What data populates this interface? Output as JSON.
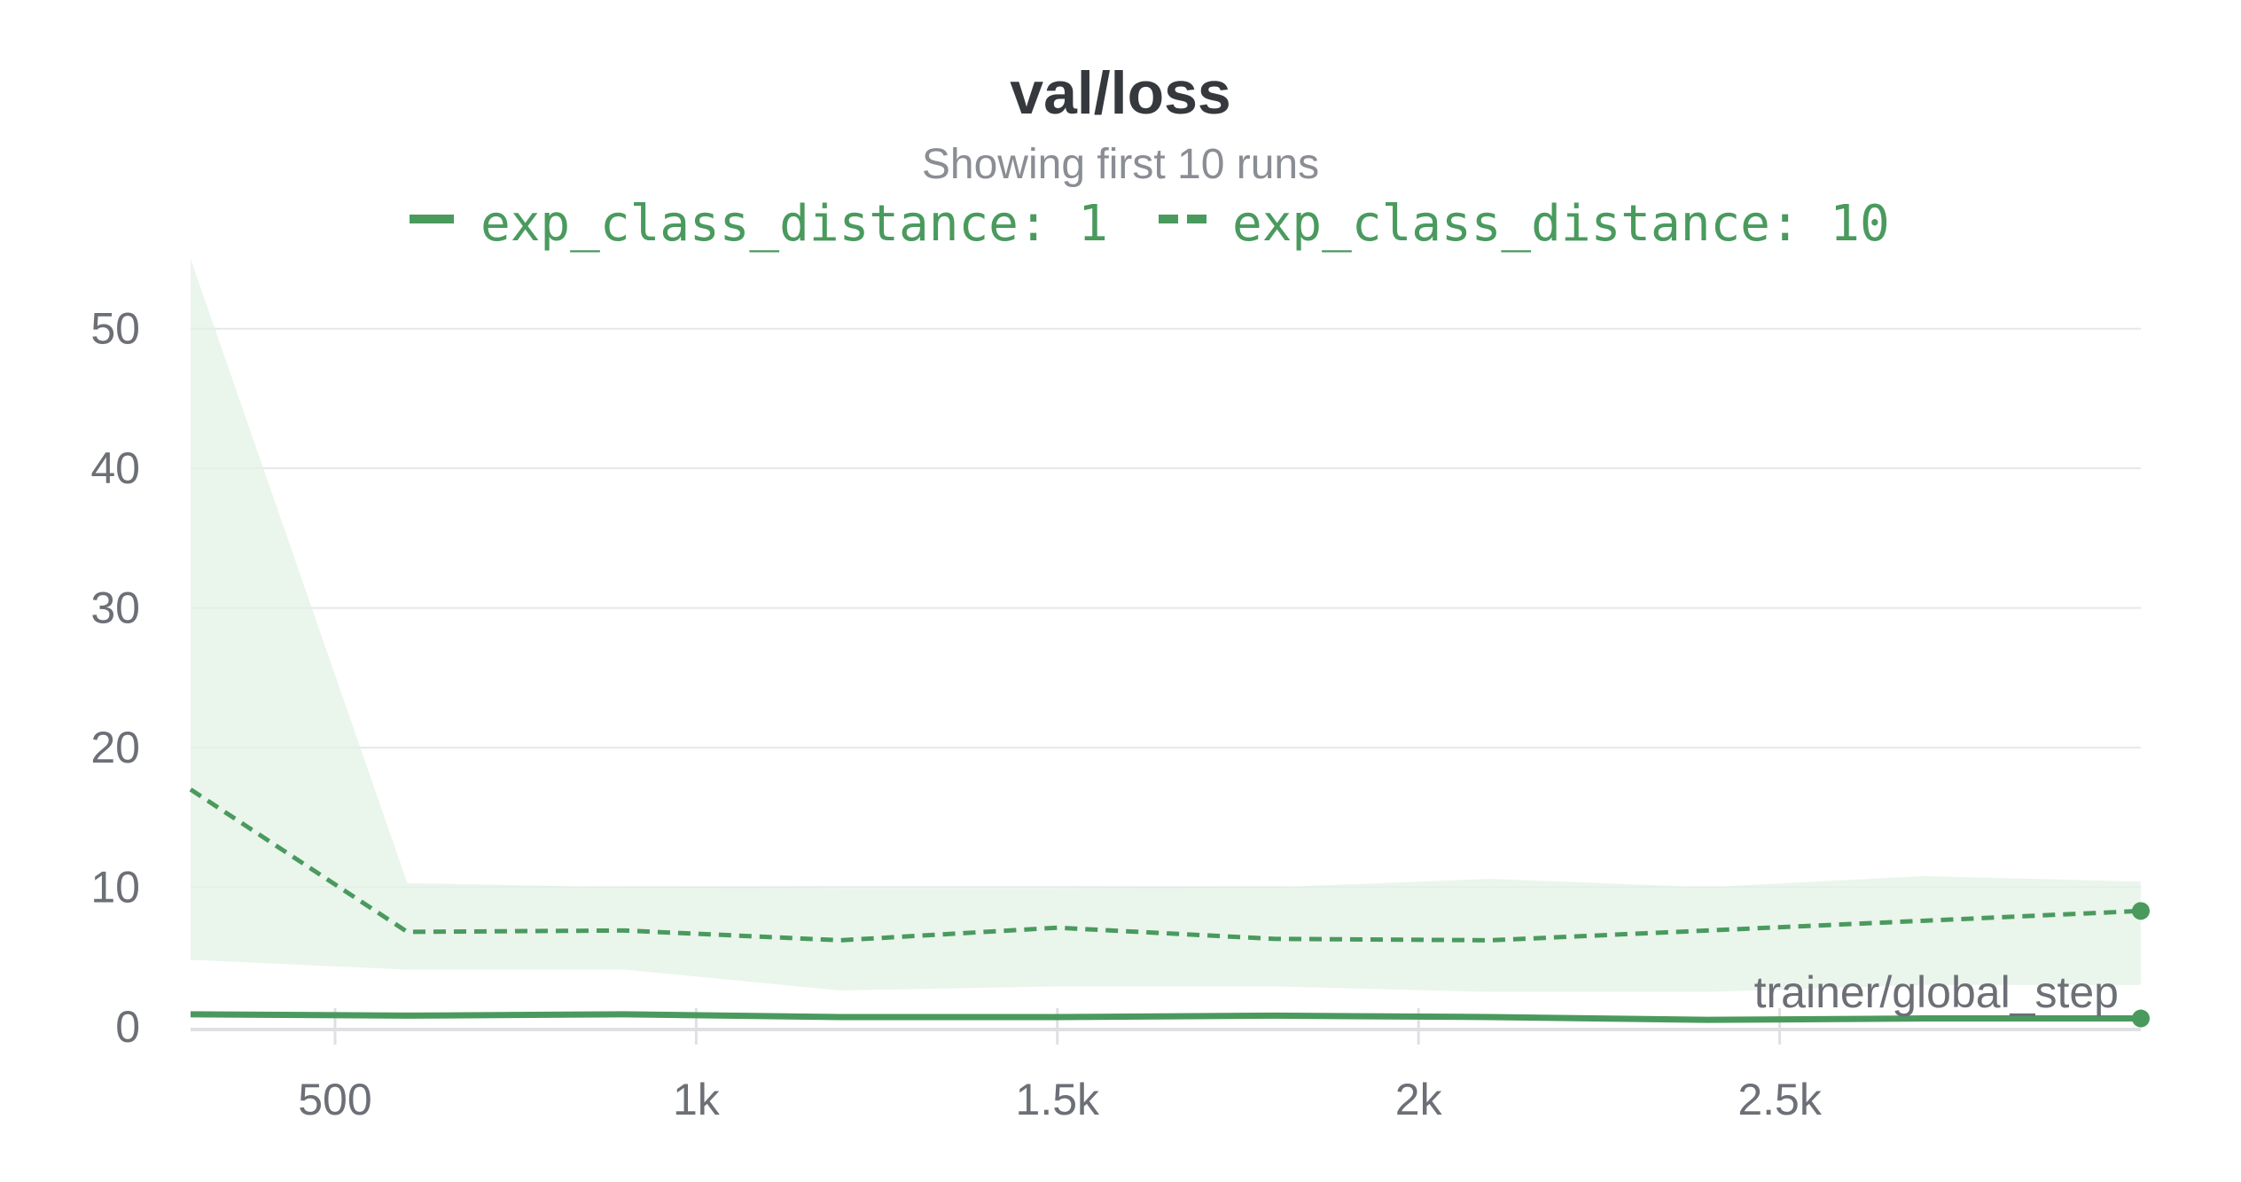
{
  "chart_data": {
    "type": "line",
    "title": "val/loss",
    "subtitle": "Showing first 10 runs",
    "xlabel": "trainer/global_step",
    "ylabel": "",
    "xlim": [
      300,
      3000
    ],
    "ylim": [
      0,
      55
    ],
    "xticks": [
      500,
      1000,
      1500,
      2000,
      2500
    ],
    "xtick_labels": [
      "500",
      "1k",
      "1.5k",
      "2k",
      "2.5k"
    ],
    "yticks": [
      0,
      10,
      20,
      30,
      40,
      50
    ],
    "ytick_labels": [
      "0",
      "10",
      "20",
      "30",
      "40",
      "50"
    ],
    "grid": true,
    "legend_position": "top",
    "color": "#4a9a5e",
    "band_color": "#e3f1e6",
    "series": [
      {
        "name": "exp_class_distance: 1",
        "style": "solid",
        "x": [
          300,
          600,
          900,
          1200,
          1500,
          1800,
          2100,
          2400,
          2700,
          3000
        ],
        "y": [
          0.9,
          0.8,
          0.9,
          0.7,
          0.7,
          0.8,
          0.7,
          0.5,
          0.6,
          0.6
        ],
        "band_lower": [
          0.7,
          0.6,
          0.7,
          0.5,
          0.5,
          0.6,
          0.5,
          0.4,
          0.4,
          0.4
        ],
        "band_upper": [
          1.1,
          1.0,
          1.1,
          0.9,
          0.9,
          1.0,
          0.9,
          0.7,
          0.8,
          0.8
        ]
      },
      {
        "name": "exp_class_distance: 10",
        "style": "dashed",
        "x": [
          300,
          600,
          900,
          1200,
          1500,
          1800,
          2100,
          2400,
          2700,
          3000
        ],
        "y": [
          17.0,
          6.8,
          6.9,
          6.2,
          7.1,
          6.3,
          6.2,
          6.9,
          7.6,
          8.3
        ],
        "band_lower": [
          4.8,
          4.1,
          4.1,
          2.6,
          2.9,
          2.9,
          2.5,
          2.5,
          3.0,
          3.0
        ],
        "band_upper": [
          55.0,
          10.3,
          10.0,
          9.9,
          9.9,
          10.0,
          10.6,
          10.0,
          10.8,
          10.4
        ]
      }
    ]
  }
}
